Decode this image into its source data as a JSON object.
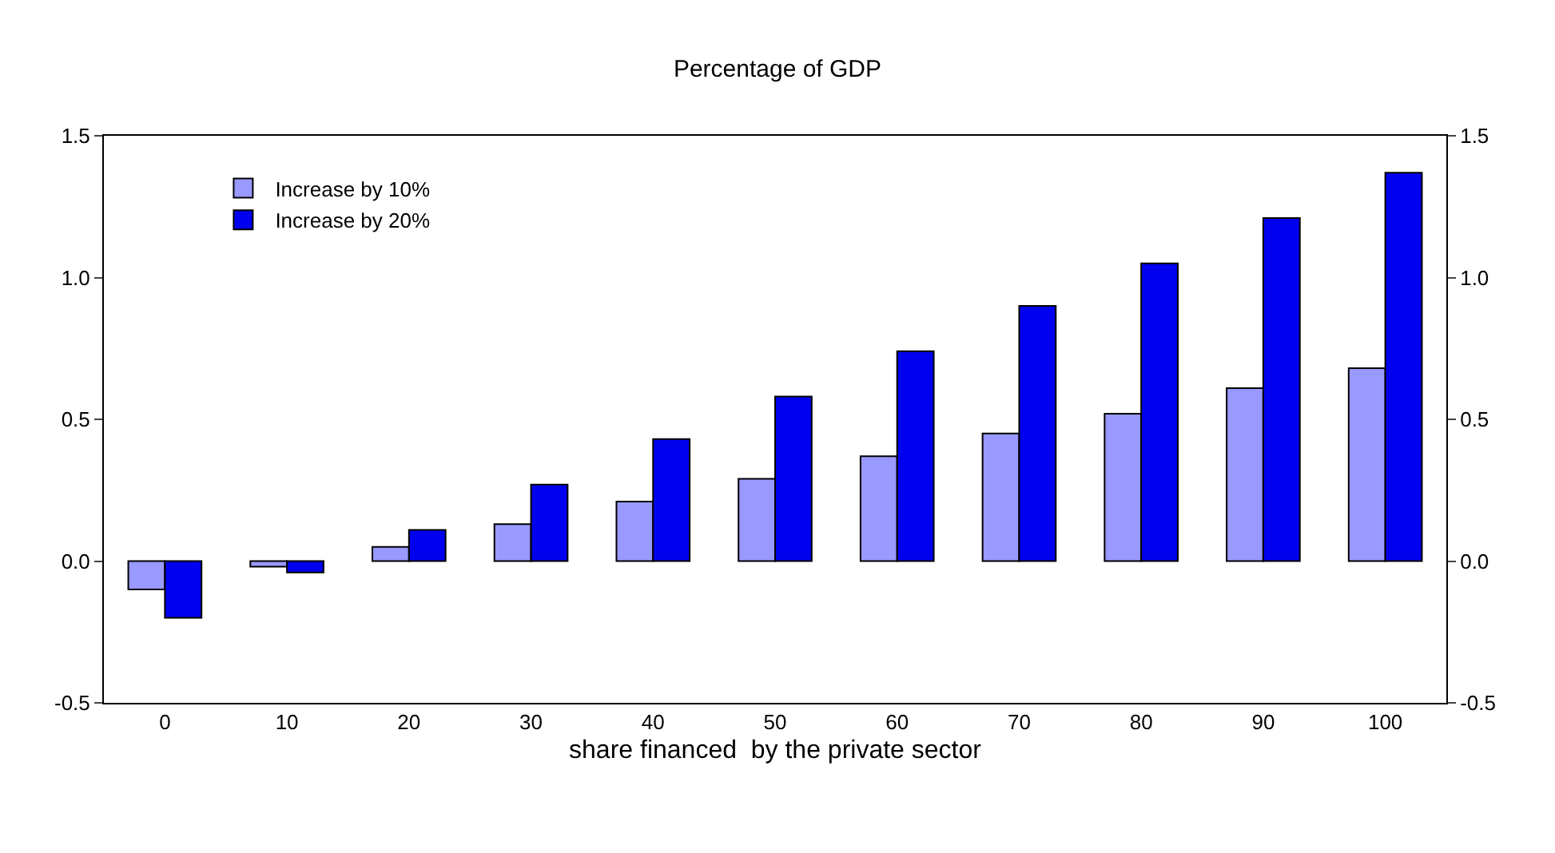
{
  "chart_data": {
    "type": "bar",
    "title": "Percentage of GDP",
    "xlabel": "share financed  by the private sector",
    "categories": [
      "0",
      "10",
      "20",
      "30",
      "40",
      "50",
      "60",
      "70",
      "80",
      "90",
      "100"
    ],
    "series": [
      {
        "name": "Increase by 10%",
        "color": "#9999ff",
        "values": [
          -0.1,
          -0.02,
          0.05,
          0.13,
          0.21,
          0.29,
          0.37,
          0.45,
          0.52,
          0.61,
          0.68
        ]
      },
      {
        "name": "Increase by 20%",
        "color": "#0000ee",
        "values": [
          -0.2,
          -0.04,
          0.11,
          0.27,
          0.43,
          0.58,
          0.74,
          0.9,
          1.05,
          1.21,
          1.37
        ]
      }
    ],
    "ylim": [
      -0.5,
      1.5
    ],
    "yticks": [
      {
        "value": -0.5,
        "label": "-0.5"
      },
      {
        "value": 0,
        "label": "0.0"
      },
      {
        "value": 0.5,
        "label": "0.5"
      },
      {
        "value": 1,
        "label": "1.0"
      },
      {
        "value": 1.5,
        "label": "1.5"
      }
    ],
    "y2lim": [
      -0.5,
      1.5
    ],
    "y2ticks": [
      {
        "value": -0.5,
        "label": "-0.5"
      },
      {
        "value": 0,
        "label": "0.0"
      },
      {
        "value": 0.5,
        "label": "0.5"
      },
      {
        "value": 1,
        "label": "1.0"
      },
      {
        "value": 1.5,
        "label": "1.5"
      }
    ],
    "grid": false,
    "legend": "top left"
  }
}
